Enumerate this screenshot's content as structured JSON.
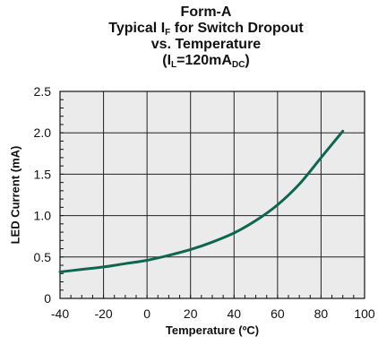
{
  "chart_data": {
    "type": "line",
    "title": "Form-A",
    "subtitle_prefix": "Typical I",
    "subtitle_sub": "F",
    "subtitle_suffix": " for Switch Dropout",
    "subtitle2": "vs. Temperature",
    "condition_open": "(I",
    "condition_sub1": "L",
    "condition_mid": "=120mA",
    "condition_sub2": "DC",
    "condition_close": ")",
    "xlabel": "Temperature (ºC)",
    "ylabel": "LED Current (mA)",
    "xlim": [
      -40,
      100
    ],
    "ylim": [
      0,
      2.5
    ],
    "x_ticks": [
      "-40",
      "-20",
      "0",
      "20",
      "40",
      "60",
      "80",
      "100"
    ],
    "y_ticks": [
      "0",
      "0.5",
      "1.0",
      "1.5",
      "2.0",
      "2.5"
    ],
    "grid": true,
    "series": [
      {
        "color": "#0f6650",
        "x": [
          -40,
          -30,
          -20,
          -10,
          0,
          10,
          20,
          30,
          40,
          50,
          60,
          70,
          80,
          90
        ],
        "y": [
          0.32,
          0.35,
          0.38,
          0.42,
          0.46,
          0.52,
          0.59,
          0.68,
          0.79,
          0.94,
          1.13,
          1.38,
          1.7,
          2.02
        ]
      }
    ]
  }
}
